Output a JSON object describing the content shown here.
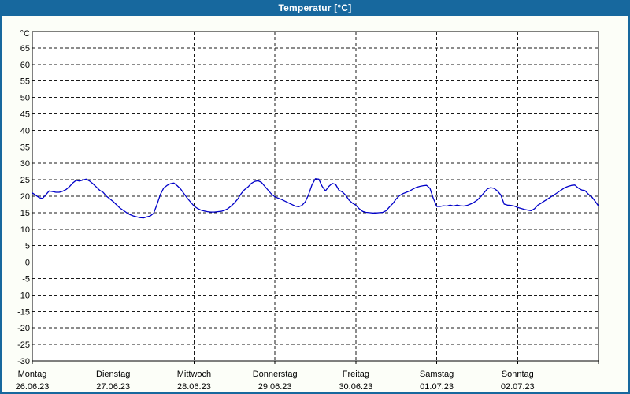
{
  "window": {
    "title": "Temperatur [°C]"
  },
  "colors": {
    "accent_blue": "#17689e",
    "page_background": "#fcfef8",
    "plot_background": "#ffffff",
    "grid_line": "#1a1a1a",
    "series_line": "#0000c8",
    "title_text": "#ffffff",
    "axis_text": "#000000"
  },
  "chart_data": {
    "type": "line",
    "title": "Temperatur [°C]",
    "y_axis_unit": "°C",
    "ylim": [
      -30,
      70
    ],
    "y_tick_step": 5,
    "y_ticks": [
      "65",
      "60",
      "55",
      "50",
      "45",
      "40",
      "35",
      "30",
      "25",
      "20",
      "15",
      "10",
      "5",
      "0",
      "-5",
      "-10",
      "-15",
      "-20",
      "-25",
      "-30"
    ],
    "grid": "dashed",
    "x_hours_total": 168,
    "days": [
      {
        "weekday": "Montag",
        "date": "26.06.23"
      },
      {
        "weekday": "Dienstag",
        "date": "27.06.23"
      },
      {
        "weekday": "Mittwoch",
        "date": "28.06.23"
      },
      {
        "weekday": "Donnerstag",
        "date": "29.06.23"
      },
      {
        "weekday": "Freitag",
        "date": "30.06.23"
      },
      {
        "weekday": "Samstag",
        "date": "01.07.23"
      },
      {
        "weekday": "Sonntag",
        "date": "02.07.23"
      }
    ],
    "series": [
      {
        "name": "Temperatur",
        "color": "#0000c8",
        "points": [
          [
            0,
            21.0
          ],
          [
            1,
            20.3
          ],
          [
            2,
            19.6
          ],
          [
            3,
            19.3
          ],
          [
            4,
            20.4
          ],
          [
            5,
            21.6
          ],
          [
            6,
            21.4
          ],
          [
            7,
            21.2
          ],
          [
            8,
            21.2
          ],
          [
            9,
            21.5
          ],
          [
            10,
            22.0
          ],
          [
            11,
            22.9
          ],
          [
            12,
            24.0
          ],
          [
            13,
            24.8
          ],
          [
            14,
            24.6
          ],
          [
            15,
            24.9
          ],
          [
            16,
            25.2
          ],
          [
            17,
            24.6
          ],
          [
            18,
            23.8
          ],
          [
            19,
            22.8
          ],
          [
            20,
            21.8
          ],
          [
            21,
            21.2
          ],
          [
            22,
            20.0
          ],
          [
            23,
            19.2
          ],
          [
            24,
            18.4
          ],
          [
            25,
            17.4
          ],
          [
            26,
            16.4
          ],
          [
            27,
            15.7
          ],
          [
            28,
            15.0
          ],
          [
            29,
            14.4
          ],
          [
            30,
            14.0
          ],
          [
            31,
            13.7
          ],
          [
            32,
            13.5
          ],
          [
            33,
            13.4
          ],
          [
            34,
            13.7
          ],
          [
            35,
            14.0
          ],
          [
            36,
            14.8
          ],
          [
            37,
            17.5
          ],
          [
            38,
            20.5
          ],
          [
            39,
            22.5
          ],
          [
            40,
            23.3
          ],
          [
            41,
            23.8
          ],
          [
            42,
            24.0
          ],
          [
            43,
            23.2
          ],
          [
            44,
            22.2
          ],
          [
            45,
            20.8
          ],
          [
            46,
            19.4
          ],
          [
            47,
            18.2
          ],
          [
            48,
            17.0
          ],
          [
            49,
            16.3
          ],
          [
            50,
            15.8
          ],
          [
            51,
            15.5
          ],
          [
            52,
            15.3
          ],
          [
            53,
            15.2
          ],
          [
            54,
            15.2
          ],
          [
            55,
            15.3
          ],
          [
            56,
            15.4
          ],
          [
            57,
            15.7
          ],
          [
            58,
            16.2
          ],
          [
            59,
            17.0
          ],
          [
            60,
            18.0
          ],
          [
            61,
            19.2
          ],
          [
            62,
            20.8
          ],
          [
            63,
            22.0
          ],
          [
            64,
            22.8
          ],
          [
            65,
            23.9
          ],
          [
            66,
            24.5
          ],
          [
            67,
            24.7
          ],
          [
            68,
            24.2
          ],
          [
            69,
            23.0
          ],
          [
            70,
            21.8
          ],
          [
            71,
            20.6
          ],
          [
            72,
            19.8
          ],
          [
            73,
            19.4
          ],
          [
            74,
            19.0
          ],
          [
            75,
            18.5
          ],
          [
            76,
            18.0
          ],
          [
            77,
            17.5
          ],
          [
            78,
            17.0
          ],
          [
            79,
            16.8
          ],
          [
            80,
            17.2
          ],
          [
            81,
            18.3
          ],
          [
            82,
            20.5
          ],
          [
            83,
            23.5
          ],
          [
            84,
            25.3
          ],
          [
            85,
            25.2
          ],
          [
            86,
            23.0
          ],
          [
            87,
            21.6
          ],
          [
            88,
            23.0
          ],
          [
            89,
            23.9
          ],
          [
            90,
            23.6
          ],
          [
            91,
            21.8
          ],
          [
            92,
            21.3
          ],
          [
            93,
            20.3
          ],
          [
            94,
            18.8
          ],
          [
            95,
            17.9
          ],
          [
            96,
            17.3
          ],
          [
            97,
            16.2
          ],
          [
            98,
            15.4
          ],
          [
            99,
            15.1
          ],
          [
            100,
            15.0
          ],
          [
            101,
            14.9
          ],
          [
            102,
            14.9
          ],
          [
            103,
            15.0
          ],
          [
            104,
            15.1
          ],
          [
            105,
            15.6
          ],
          [
            106,
            16.8
          ],
          [
            107,
            17.8
          ],
          [
            108,
            19.2
          ],
          [
            109,
            20.2
          ],
          [
            110,
            20.8
          ],
          [
            111,
            21.2
          ],
          [
            112,
            21.6
          ],
          [
            113,
            22.2
          ],
          [
            114,
            22.7
          ],
          [
            115,
            23.0
          ],
          [
            116,
            23.2
          ],
          [
            117,
            23.3
          ],
          [
            118,
            22.4
          ],
          [
            119,
            19.3
          ],
          [
            120,
            16.9
          ],
          [
            121,
            16.9
          ],
          [
            122,
            17.1
          ],
          [
            123,
            17.0
          ],
          [
            124,
            17.3
          ],
          [
            125,
            17.0
          ],
          [
            126,
            17.3
          ],
          [
            127,
            17.1
          ],
          [
            128,
            17.0
          ],
          [
            129,
            17.2
          ],
          [
            130,
            17.6
          ],
          [
            131,
            18.1
          ],
          [
            132,
            18.8
          ],
          [
            133,
            19.8
          ],
          [
            134,
            21.0
          ],
          [
            135,
            22.2
          ],
          [
            136,
            22.6
          ],
          [
            137,
            22.4
          ],
          [
            138,
            21.6
          ],
          [
            139,
            20.4
          ],
          [
            140,
            17.6
          ],
          [
            141,
            17.3
          ],
          [
            142,
            17.2
          ],
          [
            143,
            17.0
          ],
          [
            144,
            16.6
          ],
          [
            145,
            16.3
          ],
          [
            146,
            16.0
          ],
          [
            147,
            15.8
          ],
          [
            148,
            15.6
          ],
          [
            149,
            16.2
          ],
          [
            150,
            17.3
          ],
          [
            151,
            17.9
          ],
          [
            152,
            18.6
          ],
          [
            153,
            19.2
          ],
          [
            154,
            19.9
          ],
          [
            155,
            20.5
          ],
          [
            156,
            21.2
          ],
          [
            157,
            21.9
          ],
          [
            158,
            22.6
          ],
          [
            159,
            23.0
          ],
          [
            160,
            23.3
          ],
          [
            161,
            23.4
          ],
          [
            162,
            22.5
          ],
          [
            163,
            21.9
          ],
          [
            164,
            21.7
          ],
          [
            165,
            20.6
          ],
          [
            166,
            19.8
          ],
          [
            167,
            18.5
          ],
          [
            168,
            17.0
          ]
        ]
      }
    ]
  }
}
